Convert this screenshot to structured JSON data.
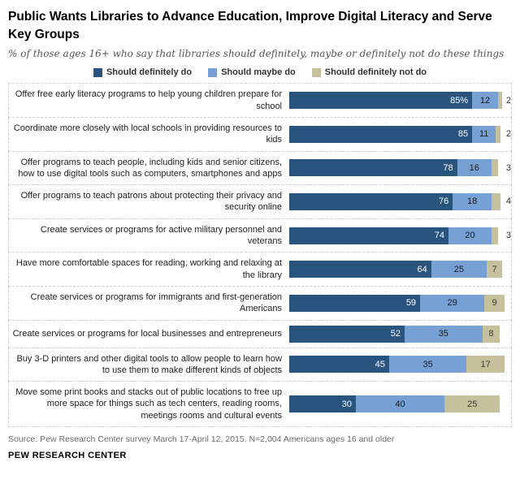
{
  "title": "Public Wants Libraries to Advance Education, Improve Digital Literacy and Serve Key Groups",
  "subtitle": "% of those ages 16+ who say that libraries should definitely, maybe or definitely not do these things",
  "legend": [
    {
      "label": "Should definitely do",
      "color": "#28547E"
    },
    {
      "label": "Should maybe do",
      "color": "#77A0D4"
    },
    {
      "label": "Should definitely not do",
      "color": "#C6C09C"
    }
  ],
  "chart_data": {
    "type": "bar",
    "orientation": "horizontal",
    "stacked": true,
    "series_names": [
      "Should definitely do",
      "Should maybe do",
      "Should definitely not do"
    ],
    "colors": [
      "#28547E",
      "#77A0D4",
      "#C6C09C"
    ],
    "xlim": [
      0,
      100
    ],
    "rows": [
      {
        "label": "Offer free early literacy programs to help young children prepare for school",
        "values": [
          85,
          12,
          2
        ],
        "display": [
          "85%",
          "12",
          "2"
        ]
      },
      {
        "label": "Coordinate more closely with local schools in providing resources to kids",
        "values": [
          85,
          11,
          2
        ],
        "display": [
          "85",
          "11",
          "2"
        ]
      },
      {
        "label": "Offer programs to teach people, including kids and senior citizens, how to use digital tools such as computers, smartphones and apps",
        "values": [
          78,
          16,
          3
        ],
        "display": [
          "78",
          "16",
          "3"
        ]
      },
      {
        "label": "Offer programs to teach patrons about protecting their privacy and security online",
        "values": [
          76,
          18,
          4
        ],
        "display": [
          "76",
          "18",
          "4"
        ]
      },
      {
        "label": "Create services or programs for active military personnel and veterans",
        "values": [
          74,
          20,
          3
        ],
        "display": [
          "74",
          "20",
          "3"
        ]
      },
      {
        "label": "Have more comfortable spaces for reading, working and relaxing at the library",
        "values": [
          64,
          25,
          7
        ],
        "display": [
          "64",
          "25",
          "7"
        ]
      },
      {
        "label": "Create services or programs for immigrants and first-generation Americans",
        "values": [
          59,
          29,
          9
        ],
        "display": [
          "59",
          "29",
          "9"
        ]
      },
      {
        "label": "Create services or programs for local businesses and entrepreneurs",
        "values": [
          52,
          35,
          8
        ],
        "display": [
          "52",
          "35",
          "8"
        ]
      },
      {
        "label": "Buy 3-D printers and other digital tools to allow people to learn how to use them to make different kinds of objects",
        "values": [
          45,
          35,
          17
        ],
        "display": [
          "45",
          "35",
          "17"
        ]
      },
      {
        "label": "Move some print books and stacks out of public locations to free up more space for things such as tech centers, reading rooms, meetings rooms and cultural events",
        "values": [
          30,
          40,
          25
        ],
        "display": [
          "30",
          "40",
          "25"
        ]
      }
    ]
  },
  "source": "Source: Pew Research Center survey March 17-April 12, 2015. N=2,004 Americans ages 16 and older",
  "footer": "PEW RESEARCH CENTER"
}
